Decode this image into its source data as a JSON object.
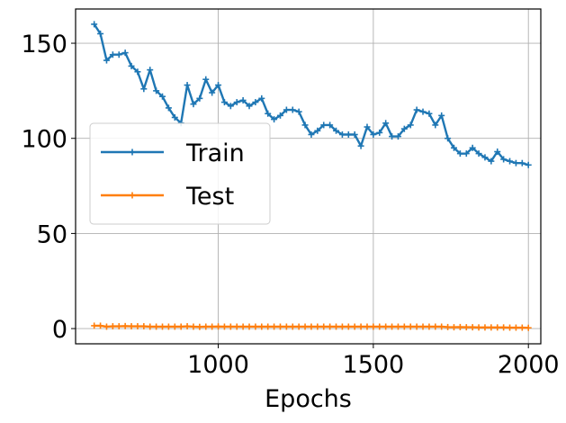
{
  "chart_data": {
    "type": "line",
    "title": "",
    "xlabel": "Epochs",
    "ylabel": "",
    "xlim": [
      540,
      2040
    ],
    "ylim": [
      -8,
      168
    ],
    "xticks": [
      1000,
      1500,
      2000
    ],
    "yticks": [
      0,
      50,
      100,
      150
    ],
    "grid": true,
    "legend_placement": "center-left",
    "x": [
      600,
      620,
      640,
      660,
      680,
      700,
      720,
      740,
      760,
      780,
      800,
      820,
      840,
      860,
      880,
      900,
      920,
      940,
      960,
      980,
      1000,
      1020,
      1040,
      1060,
      1080,
      1100,
      1120,
      1140,
      1160,
      1180,
      1200,
      1220,
      1240,
      1260,
      1280,
      1300,
      1320,
      1340,
      1360,
      1380,
      1400,
      1420,
      1440,
      1460,
      1480,
      1500,
      1520,
      1540,
      1560,
      1580,
      1600,
      1620,
      1640,
      1660,
      1680,
      1700,
      1720,
      1740,
      1760,
      1780,
      1800,
      1820,
      1840,
      1860,
      1880,
      1900,
      1920,
      1940,
      1960,
      1980,
      2000
    ],
    "series": [
      {
        "name": "Train",
        "color": "#1f77b4",
        "values": [
          160,
          155,
          141,
          144,
          144,
          145,
          138,
          135,
          126,
          136,
          125,
          122,
          116,
          111,
          108,
          128,
          118,
          121,
          131,
          124,
          128,
          119,
          117,
          119,
          120,
          117,
          119,
          121,
          113,
          110,
          112,
          115,
          115,
          114,
          107,
          102,
          104,
          107,
          107,
          104,
          102,
          102,
          102,
          96,
          106,
          102,
          103,
          108,
          101,
          101,
          105,
          107,
          115,
          114,
          113,
          107,
          112,
          100,
          95,
          92,
          92,
          95,
          92,
          90,
          88,
          93,
          89,
          88,
          87,
          87,
          86
        ]
      },
      {
        "name": "Test",
        "color": "#ff7f0e",
        "values": [
          1.5,
          1.5,
          1.0,
          1.2,
          1.2,
          1.3,
          1.2,
          1.2,
          1.2,
          1.0,
          1.0,
          1.0,
          1.0,
          1.0,
          1.0,
          1.2,
          1.0,
          0.9,
          1.0,
          1.0,
          1.1,
          1.0,
          1.0,
          1.0,
          1.0,
          1.0,
          1.0,
          1.0,
          1.0,
          1.0,
          1.0,
          1.0,
          1.0,
          1.0,
          1.0,
          1.0,
          1.0,
          1.0,
          1.0,
          1.0,
          1.0,
          1.0,
          1.0,
          1.0,
          1.0,
          1.0,
          1.0,
          1.0,
          1.0,
          1.0,
          1.0,
          1.0,
          1.0,
          1.0,
          1.0,
          1.0,
          1.0,
          0.8,
          0.7,
          0.8,
          0.7,
          0.7,
          0.6,
          0.6,
          0.6,
          0.6,
          0.6,
          0.5,
          0.5,
          0.5,
          0.4
        ]
      }
    ]
  }
}
